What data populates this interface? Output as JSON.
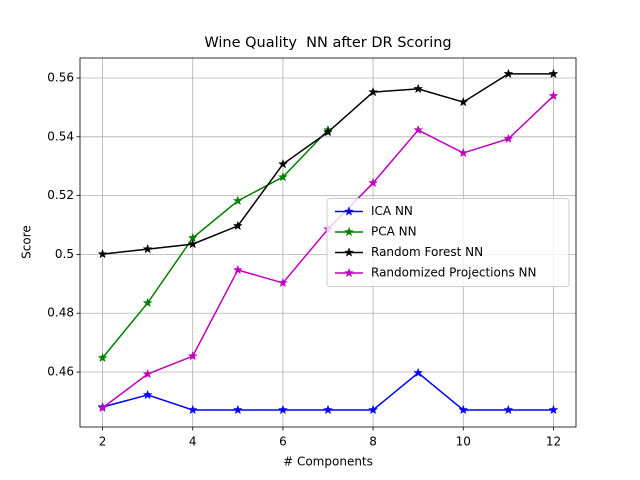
{
  "chart_data": {
    "type": "line",
    "title": "Wine Quality  NN after DR Scoring",
    "x_label": "# Components",
    "y_label": "Score",
    "x": [
      2,
      3,
      4,
      5,
      6,
      7,
      8,
      9,
      10,
      11,
      12
    ],
    "series": [
      {
        "name": "ICA NN",
        "color": "#0000ff",
        "values": [
          0.4481,
          0.4522,
          0.4471,
          0.4471,
          0.4471,
          0.4471,
          0.4471,
          0.4597,
          0.4471,
          0.4471,
          0.4471
        ]
      },
      {
        "name": "PCA NN",
        "color": "#008000",
        "values": [
          0.4648,
          0.4835,
          0.5056,
          0.5182,
          0.5263,
          0.5423,
          null,
          null,
          null,
          null,
          null
        ]
      },
      {
        "name": "Random Forest NN",
        "color": "#000000",
        "values": [
          0.5001,
          0.5018,
          0.5035,
          0.5097,
          0.5307,
          0.5416,
          0.5552,
          0.5563,
          0.5518,
          0.5614,
          0.5614
        ]
      },
      {
        "name": "Randomized Projections NN",
        "color": "#bf00bf",
        "values": [
          0.4478,
          0.4593,
          0.4654,
          0.4947,
          0.4903,
          0.5086,
          0.5243,
          0.5423,
          0.5345,
          0.5393,
          0.5539
        ]
      }
    ],
    "xlim": [
      1.5,
      12.5
    ],
    "ylim": [
      0.4413,
      0.5668
    ],
    "xticks": [
      2,
      4,
      6,
      8,
      10,
      12
    ],
    "yticks": [
      0.46,
      0.48,
      0.5,
      0.52,
      0.54,
      0.56
    ],
    "yticks_labels_note": null,
    "grid": true,
    "legend": "center right",
    "marker": "star"
  }
}
